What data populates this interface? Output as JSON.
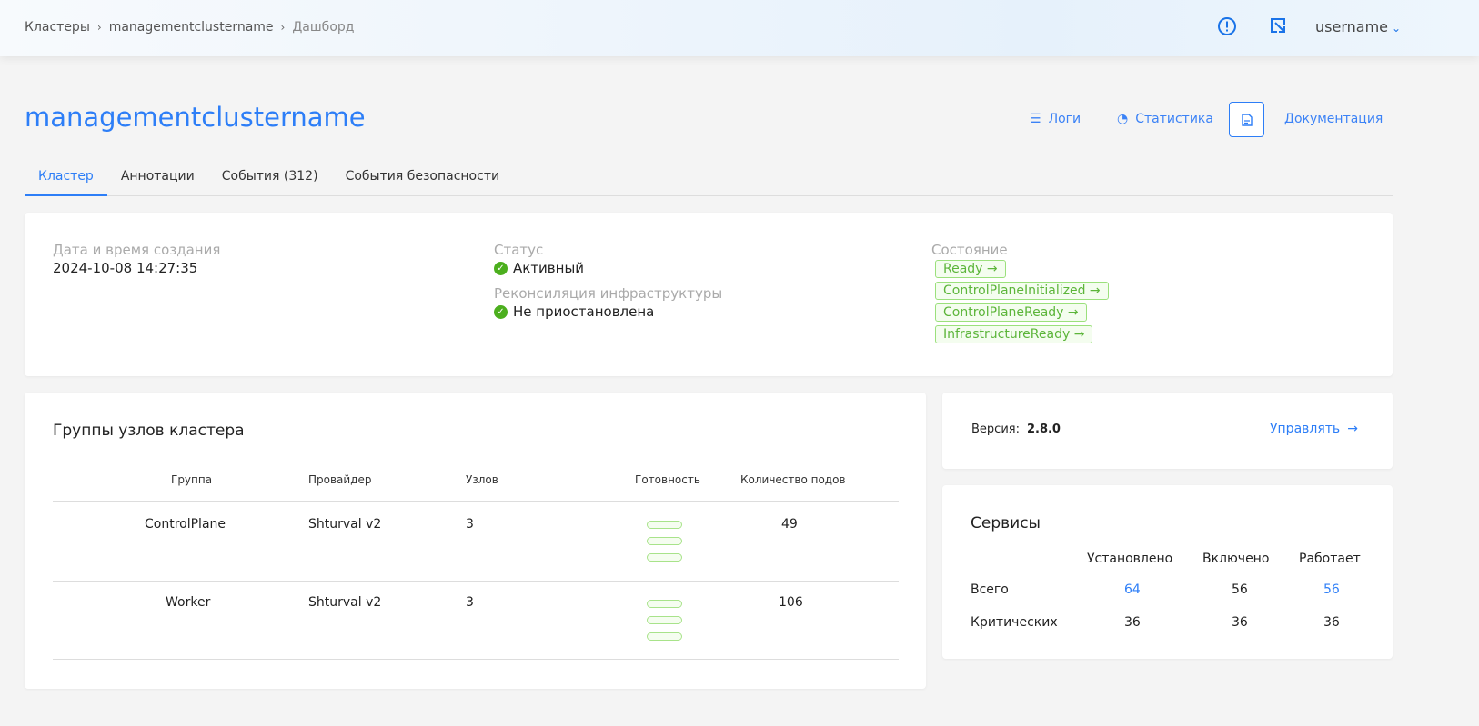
{
  "breadcrumbs": [
    "Кластеры",
    "managementclustername",
    "Дашборд"
  ],
  "header": {
    "user": "username",
    "icons": [
      "alert-circle-icon",
      "collapse-arrow-icon",
      "chevron-down-icon"
    ]
  },
  "title": "managementclustername",
  "actions": {
    "logs": "Логи",
    "stats": "Статистика",
    "docs": "Документация"
  },
  "tabs": [
    "Кластер",
    "Аннотации",
    "События (312)",
    "События безопасности"
  ],
  "info": {
    "created_label": "Дата и время создания",
    "created": "2024-10-08 14:27:35",
    "status_label": "Статус",
    "status": "Активный",
    "recon_label": "Реконсиляция инфраструктуры",
    "recon": "Не приостановлена",
    "state_label": "Состояние",
    "conditions": [
      "Ready →",
      "ControlPlaneInitialized →",
      "ControlPlaneReady →",
      "InfrastructureReady →"
    ]
  },
  "nodegroups": {
    "title": "Группы узлов кластера",
    "columns": [
      "Группа",
      "Провайдер",
      "Узлов",
      "Готовность",
      "Количество подов"
    ],
    "rows": [
      {
        "group": "ControlPlane",
        "provider": "Shturval v2",
        "nodes": "3",
        "ready_bars": 3,
        "pods": "49"
      },
      {
        "group": "Worker",
        "provider": "Shturval v2",
        "nodes": "3",
        "ready_bars": 3,
        "pods": "106"
      }
    ]
  },
  "version": {
    "label": "Версия:",
    "value": "2.8.0",
    "manage": "Управлять"
  },
  "services": {
    "title": "Сервисы",
    "columns": [
      "Установлено",
      "Включено",
      "Работает"
    ],
    "rows": [
      {
        "label": "Всего",
        "values": [
          "64",
          "56",
          "56"
        ]
      },
      {
        "label": "Критических",
        "values": [
          "36",
          "36",
          "36"
        ]
      }
    ]
  },
  "colors": {
    "accent": "#2d7ef7",
    "success": "#4caf1e",
    "condition": "#5cb53a"
  }
}
